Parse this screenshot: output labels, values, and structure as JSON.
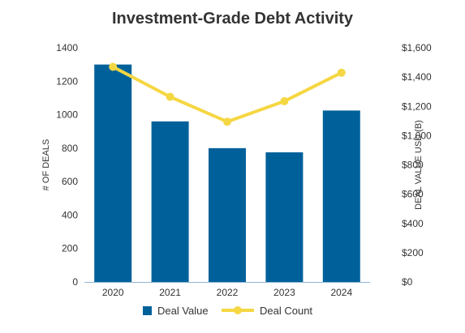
{
  "colors": {
    "bar": "#00619a",
    "line": "#f5d743",
    "axis": "#8fb6d8",
    "text": "#333333",
    "title": "#333333"
  },
  "chart_data": {
    "type": "bar",
    "title": "Investment-Grade Debt Activity",
    "categories": [
      "2020",
      "2021",
      "2022",
      "2023",
      "2024"
    ],
    "ylabel_left": "# OF DEALS",
    "ylabel_right": "DEAL VALUE USD (B)",
    "ylim_left": [
      0,
      1400
    ],
    "ylim_right": [
      0,
      1600
    ],
    "yticks_left": [
      "0",
      "200",
      "400",
      "600",
      "800",
      "1000",
      "1200",
      "1400"
    ],
    "yticks_right": [
      "$0",
      "$200",
      "$400",
      "$600",
      "$800",
      "$1,000",
      "$1,200",
      "$1,400",
      "$1,600"
    ],
    "grid": false,
    "legend_placement": "bottom",
    "series": [
      {
        "name": "Deal Value",
        "type": "bar",
        "axis": "left",
        "values": [
          1300,
          960,
          800,
          775,
          1025
        ]
      },
      {
        "name": "Deal Count",
        "type": "line",
        "axis": "right",
        "values": [
          1470,
          1265,
          1095,
          1235,
          1430
        ]
      }
    ]
  }
}
